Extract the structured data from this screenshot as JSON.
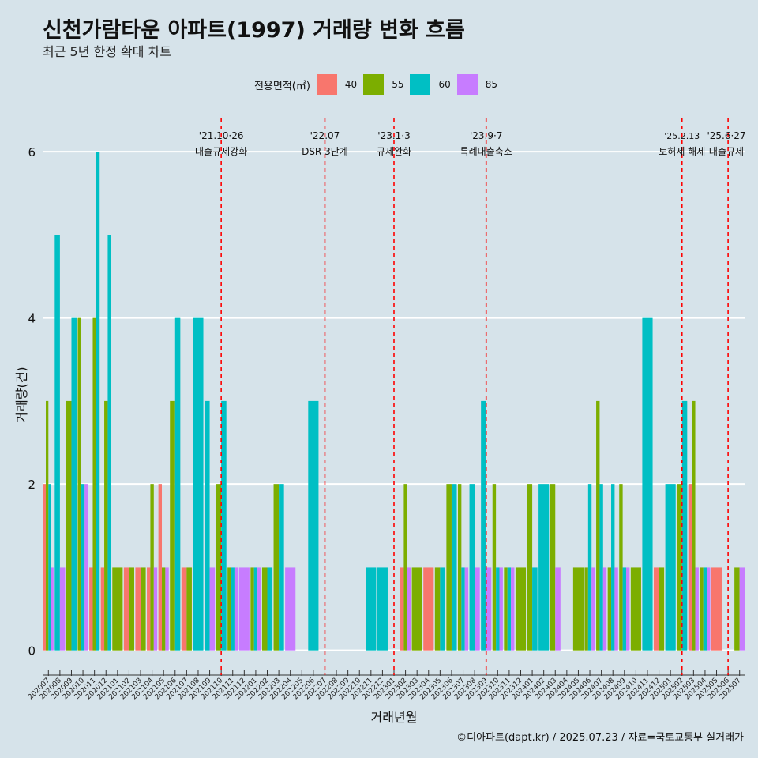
{
  "title": "신천가람타운 아파트(1997) 거래량 변화 흐름",
  "subtitle": "최근 5년 한정 확대 차트",
  "caption": "©디아파트(dapt.kr) / 2025.07.23 / 자료=국토교통부 실거래가",
  "colors": {
    "background": "#d6e3ea",
    "s40": "#f8766d",
    "s55": "#7cae00",
    "s60": "#00bfc4",
    "s85": "#c77cff",
    "annotation": "#ff0000"
  },
  "chart_data": {
    "type": "bar",
    "title": "신천가람타운 아파트(1997) 거래량 변화 흐름",
    "subtitle": "최근 5년 한정 확대 차트",
    "xlabel": "거래년월",
    "ylabel": "거래량(건)",
    "ylim": [
      -0.25,
      6.4
    ],
    "yticks": [
      0,
      2,
      4,
      6
    ],
    "legend_title": "전용면적(㎡)",
    "legend_position": "top",
    "categories": [
      "202007",
      "202008",
      "202009",
      "202010",
      "202011",
      "202012",
      "202101",
      "202102",
      "202103",
      "202104",
      "202105",
      "202106",
      "202107",
      "202108",
      "202109",
      "202110",
      "202111",
      "202112",
      "202201",
      "202202",
      "202203",
      "202204",
      "202205",
      "202206",
      "202207",
      "202208",
      "202209",
      "202210",
      "202211",
      "202212",
      "202301",
      "202302",
      "202303",
      "202304",
      "202305",
      "202306",
      "202307",
      "202308",
      "202309",
      "202310",
      "202311",
      "202312",
      "202401",
      "202402",
      "202403",
      "202404",
      "202405",
      "202406",
      "202407",
      "202408",
      "202409",
      "202410",
      "202411",
      "202412",
      "202501",
      "202502",
      "202503",
      "202504",
      "202505",
      "202506",
      "202507"
    ],
    "series": [
      {
        "name": "40",
        "color": "#f8766d",
        "values": [
          2,
          0,
          0,
          0,
          1,
          1,
          0,
          1,
          1,
          1,
          2,
          0,
          1,
          0,
          0,
          0,
          0,
          0,
          0,
          0,
          0,
          0,
          0,
          0,
          0,
          0,
          0,
          0,
          0,
          0,
          0,
          1,
          0,
          1,
          0,
          0,
          0,
          0,
          0,
          0,
          0,
          0,
          0,
          0,
          0,
          0,
          0,
          0,
          0,
          0,
          0,
          0,
          0,
          1,
          0,
          0,
          2,
          0,
          1,
          0,
          0
        ]
      },
      {
        "name": "55",
        "color": "#7cae00",
        "values": [
          3,
          0,
          3,
          4,
          4,
          3,
          1,
          1,
          1,
          2,
          1,
          3,
          1,
          0,
          0,
          2,
          1,
          0,
          1,
          1,
          2,
          0,
          0,
          0,
          0,
          0,
          0,
          0,
          0,
          0,
          0,
          2,
          1,
          0,
          1,
          2,
          2,
          0,
          0,
          2,
          1,
          1,
          2,
          0,
          2,
          0,
          1,
          1,
          3,
          1,
          2,
          1,
          0,
          1,
          0,
          2,
          3,
          1,
          0,
          0,
          1
        ]
      },
      {
        "name": "60",
        "color": "#00bfc4",
        "values": [
          2,
          5,
          4,
          2,
          6,
          5,
          0,
          0,
          0,
          0,
          0,
          4,
          0,
          4,
          3,
          3,
          1,
          0,
          1,
          1,
          2,
          0,
          0,
          3,
          0,
          0,
          0,
          0,
          1,
          1,
          0,
          0,
          0,
          0,
          1,
          2,
          1,
          2,
          3,
          1,
          1,
          0,
          1,
          2,
          0,
          0,
          0,
          2,
          2,
          2,
          1,
          0,
          4,
          0,
          2,
          3,
          0,
          1,
          0,
          0,
          0
        ]
      },
      {
        "name": "85",
        "color": "#c77cff",
        "values": [
          1,
          1,
          0,
          2,
          0,
          0,
          0,
          0,
          0,
          1,
          1,
          0,
          0,
          0,
          1,
          0,
          1,
          1,
          1,
          0,
          0,
          1,
          0,
          0,
          0,
          0,
          0,
          0,
          0,
          0,
          0,
          1,
          0,
          0,
          0,
          0,
          1,
          1,
          1,
          1,
          1,
          0,
          0,
          0,
          1,
          0,
          0,
          1,
          1,
          1,
          1,
          0,
          0,
          0,
          0,
          0,
          1,
          1,
          0,
          0,
          1
        ]
      }
    ],
    "annotations": [
      {
        "category": "202110",
        "date": "'21.10·26",
        "label": "대출규제강화"
      },
      {
        "category": "202207",
        "date": "'22.07",
        "label": "DSR 3단계"
      },
      {
        "category": "202301",
        "date": "'23.1·3",
        "label": "규제완화"
      },
      {
        "category": "202309",
        "date": "'23.9·7",
        "label": "특례대출축소"
      },
      {
        "category": "202502",
        "date": "'25.2.13",
        "label": "토허제 해제"
      },
      {
        "category": "202506",
        "date": "'25.6·27",
        "label": "대출규제"
      }
    ]
  }
}
